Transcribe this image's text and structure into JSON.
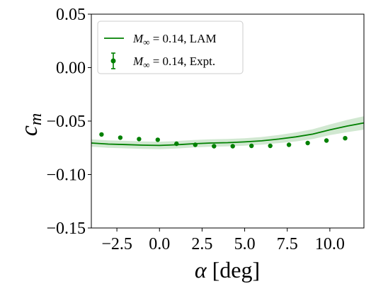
{
  "chart_data": {
    "type": "line",
    "xlabel_symbol": "α",
    "xlabel_unit": "[deg]",
    "ylabel_symbol": "c",
    "ylabel_sub": "m",
    "xlim": [
      -4.0,
      12.0
    ],
    "ylim": [
      -0.15,
      0.05
    ],
    "xticks": [
      -2.5,
      0.0,
      2.5,
      5.0,
      7.5,
      10.0
    ],
    "xtick_labels": [
      "−2.5",
      "0.0",
      "2.5",
      "5.0",
      "7.5",
      "10.0"
    ],
    "yticks": [
      0.05,
      0.0,
      -0.05,
      -0.1,
      -0.15
    ],
    "ytick_labels": [
      "0.05",
      "0.00",
      "−0.05",
      "−0.10",
      "−0.15"
    ],
    "grid": false,
    "legend_position": "top-left",
    "color": "#008000",
    "series": [
      {
        "name": "M∞ = 0.14, LAM",
        "legend_prefix": "M",
        "legend_sub": "∞",
        "legend_suffix": " = 0.14, LAM",
        "kind": "line_with_band",
        "x": [
          -4.0,
          -3.0,
          -2.0,
          -1.0,
          0.0,
          1.0,
          2.0,
          3.0,
          4.0,
          5.0,
          6.0,
          7.0,
          8.0,
          9.0,
          10.0,
          11.0,
          12.0
        ],
        "y": [
          -0.0705,
          -0.0715,
          -0.072,
          -0.0725,
          -0.0728,
          -0.0722,
          -0.0712,
          -0.0705,
          -0.0702,
          -0.0695,
          -0.0685,
          -0.0668,
          -0.0648,
          -0.0622,
          -0.0582,
          -0.0547,
          -0.0517
        ],
        "band": [
          0.0035,
          0.0035,
          0.0035,
          0.0035,
          0.0035,
          0.0035,
          0.0035,
          0.0035,
          0.0035,
          0.0035,
          0.0036,
          0.0038,
          0.0042,
          0.0046,
          0.005,
          0.0057,
          0.0063
        ]
      },
      {
        "name": "M∞ = 0.14, Expt.",
        "legend_prefix": "M",
        "legend_sub": "∞",
        "legend_suffix": " = 0.14, Expt.",
        "kind": "scatter_with_errorbars",
        "x": [
          -3.4,
          -2.3,
          -1.2,
          -0.1,
          1.0,
          2.1,
          3.2,
          4.3,
          5.4,
          6.5,
          7.6,
          8.7,
          9.8,
          10.9
        ],
        "y": [
          -0.0625,
          -0.0655,
          -0.0668,
          -0.0675,
          -0.0712,
          -0.0722,
          -0.0735,
          -0.0735,
          -0.0732,
          -0.0732,
          -0.0722,
          -0.0705,
          -0.0682,
          -0.066
        ]
      }
    ]
  }
}
